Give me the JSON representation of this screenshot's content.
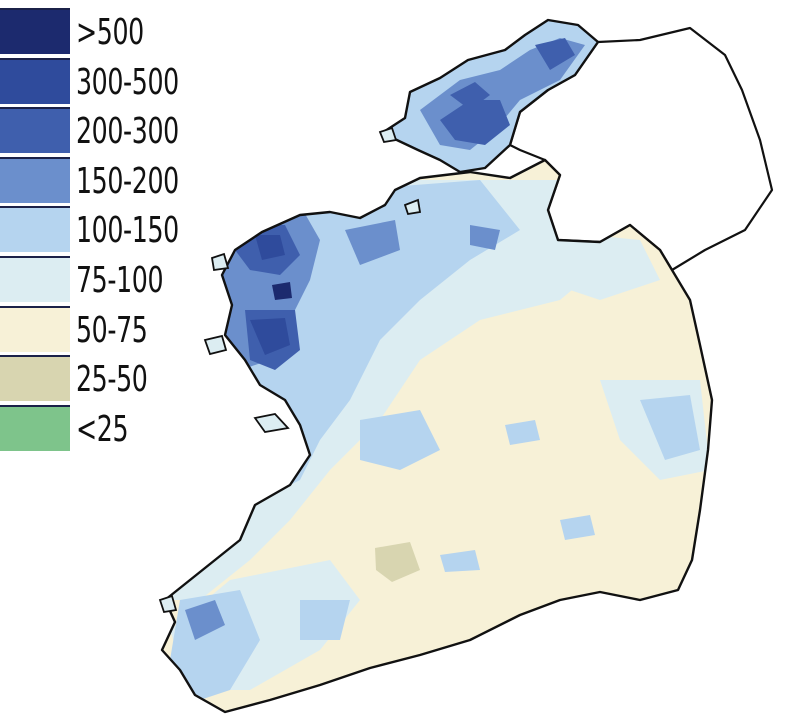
{
  "legend": {
    "classes": [
      {
        "label": ">500",
        "color": "#1c2a6e"
      },
      {
        "label": "300-500",
        "color": "#2f4b9c"
      },
      {
        "label": "200-300",
        "color": "#3f5fad"
      },
      {
        "label": "150-200",
        "color": "#6b8fcc"
      },
      {
        "label": "100-150",
        "color": "#b5d4ef"
      },
      {
        "label": "75-100",
        "color": "#dcedf2"
      },
      {
        "label": "50-75",
        "color": "#f7f1d7"
      },
      {
        "label": "25-50",
        "color": "#d8d5b0"
      },
      {
        "label": "<25",
        "color": "#7ec48b"
      }
    ]
  },
  "map": {
    "outline_color": "#111111",
    "excluded_region_color": "#ffffff"
  }
}
